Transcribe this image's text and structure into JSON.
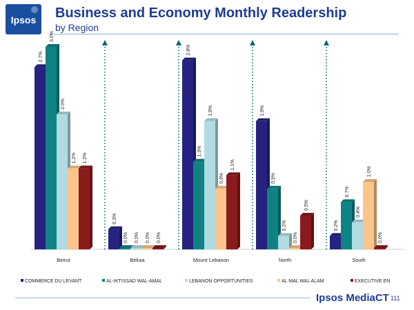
{
  "header": {
    "logo_text": "Ipsos",
    "title": "Business and Economy Monthly Readership",
    "subtitle": "by Region"
  },
  "footer": {
    "brand": "Ipsos MediaCT",
    "page_number": "111"
  },
  "colors": {
    "title": "#1f3a93",
    "divider": "#006b6b"
  },
  "chart_data": {
    "type": "bar",
    "categories": [
      "Beirut",
      "Bekaa",
      "Mount Lebanon",
      "North",
      "South"
    ],
    "ylim": [
      0,
      3.0
    ],
    "unit": "%",
    "grid": false,
    "legend_position": "bottom",
    "series": [
      {
        "name": "COMMERCE DU LEVANT",
        "color": "#25237f",
        "values": [
          2.7,
          0.3,
          2.8,
          1.9,
          0.2
        ],
        "labels": [
          "2.7%",
          "0.3%",
          "2.8%",
          "1.9%",
          "0.2%"
        ]
      },
      {
        "name": "AL-IKTISSAD WAL-AMAL",
        "color": "#0f8383",
        "values": [
          3.0,
          0.0,
          1.3,
          0.9,
          0.7
        ],
        "labels": [
          "3.0%",
          "0.0%",
          "1.3%",
          "0.9%",
          "0.7%"
        ]
      },
      {
        "name": "LEBANON OPPORTUNITIES",
        "color": "#b1dbe0",
        "values": [
          2.0,
          0.0,
          1.9,
          0.2,
          0.4
        ],
        "labels": [
          "2.0%",
          "0.0%",
          "1.9%",
          "0.2%",
          "0.4%"
        ]
      },
      {
        "name": "AL MAL WAL ALAM",
        "color": "#fbc48c",
        "values": [
          1.2,
          0.0,
          0.9,
          0.0,
          1.0
        ],
        "labels": [
          "1.2%",
          "0.0%",
          "0.9%",
          "0.0%",
          "1.0%"
        ]
      },
      {
        "name": "EXECUTIVE EN",
        "color": "#8b1a1d",
        "values": [
          1.2,
          0.0,
          1.1,
          0.5,
          0.0
        ],
        "labels": [
          "1.2%",
          "0.0%",
          "1.1%",
          "0.5%",
          "0.0%"
        ]
      }
    ]
  }
}
